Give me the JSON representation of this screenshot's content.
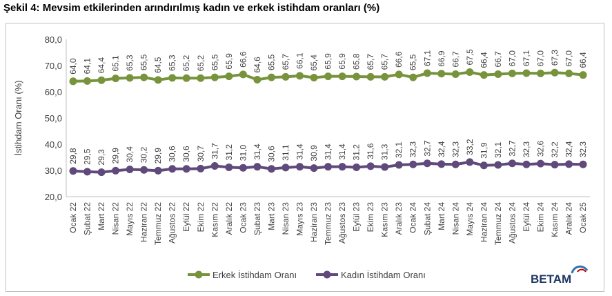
{
  "title": "Şekil 4: Mevsim etkilerinden arındırılmış kadın ve erkek istihdam oranları (%)",
  "logo_text": "BETAM",
  "colors": {
    "erkek": "#77933c",
    "kadin": "#604a7b"
  },
  "chart_data": {
    "type": "line",
    "title": "Şekil 4: Mevsim etkilerinden arındırılmış kadın ve erkek istihdam oranları (%)",
    "xlabel": "",
    "ylabel": "İstihdam Oranı (%)",
    "ylim": [
      20,
      80
    ],
    "yticks": [
      "20,0",
      "30,0",
      "40,0",
      "50,0",
      "60,0",
      "70,0",
      "80,0"
    ],
    "grid": false,
    "legend": "bottom-center",
    "categories": [
      "Ocak 22",
      "Şubat 22",
      "Mart 22",
      "Nisan 22",
      "Mayıs 22",
      "Haziran 22",
      "Temmuz 22",
      "Ağustos 22",
      "Eylül 22",
      "Ekim 22",
      "Kasım 22",
      "Aralık 22",
      "Ocak 23",
      "Şubat 23",
      "Mart 23",
      "Nisan 23",
      "Mayıs 23",
      "Haziran 23",
      "Temmuz 23",
      "Ağustos 23",
      "Eylül 23",
      "Ekim 23",
      "Kasım 23",
      "Aralık 23",
      "Ocak 24",
      "Şubat 24",
      "Mart 24",
      "Nisan 24",
      "Mayıs 24",
      "Haziran 24",
      "Temmuz 24",
      "Ağustos 24",
      "Eylül 24",
      "Ekim 24",
      "Kasım 24",
      "Aralık 24",
      "Ocak 25"
    ],
    "series": [
      {
        "name": "Erkek İstihdam Oranı",
        "values": [
          64.0,
          64.1,
          64.4,
          65.1,
          65.3,
          65.5,
          64.5,
          65.3,
          65.2,
          65.2,
          65.5,
          65.9,
          66.6,
          64.6,
          65.5,
          65.7,
          66.1,
          65.4,
          65.9,
          65.9,
          65.8,
          65.7,
          65.7,
          66.6,
          65.5,
          67.1,
          66.9,
          66.7,
          67.5,
          66.4,
          66.7,
          67.0,
          67.1,
          67.0,
          67.3,
          67.0,
          66.4
        ]
      },
      {
        "name": "Kadın İstihdam Oranı",
        "values": [
          29.8,
          29.5,
          29.3,
          29.9,
          30.4,
          30.2,
          29.9,
          30.6,
          30.6,
          30.7,
          31.7,
          31.2,
          31.0,
          31.4,
          30.6,
          31.1,
          31.4,
          30.9,
          31.4,
          31.4,
          31.2,
          31.6,
          31.3,
          32.1,
          32.3,
          32.7,
          32.4,
          32.3,
          33.2,
          31.9,
          32.1,
          32.7,
          32.3,
          32.6,
          32.2,
          32.4,
          32.3
        ]
      }
    ]
  }
}
